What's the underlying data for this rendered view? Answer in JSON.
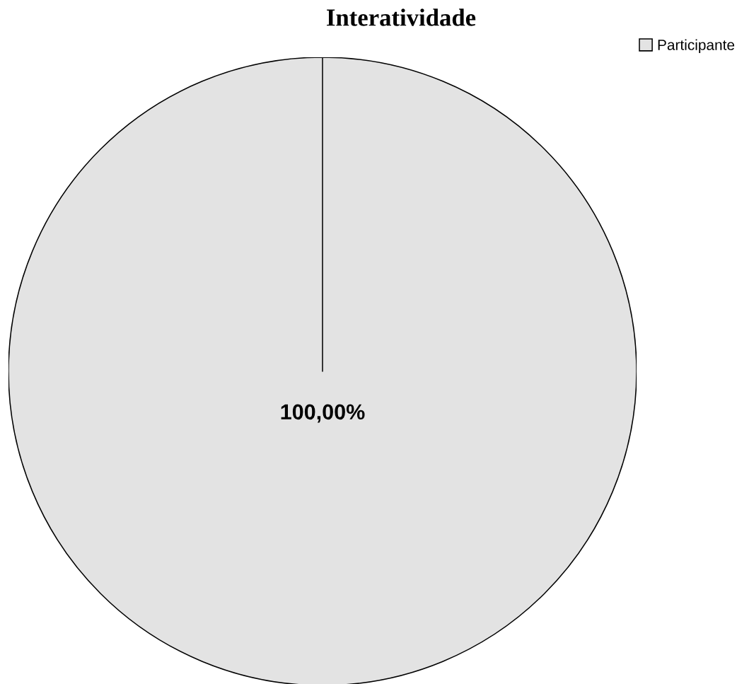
{
  "chart_data": {
    "type": "pie",
    "title": "Interatividade",
    "categories": [
      "Participante"
    ],
    "values": [
      100
    ],
    "colors": [
      "#e3e3e3"
    ],
    "value_labels": [
      "100,00%"
    ],
    "legend": "top right"
  }
}
